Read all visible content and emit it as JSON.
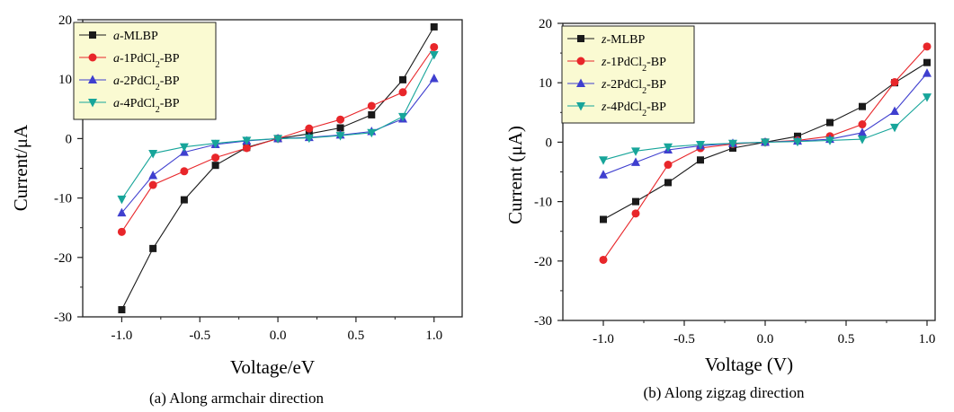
{
  "chart_data": [
    {
      "type": "line",
      "caption": "(a)  Along armchair direction",
      "xlabel": "Voltage/eV",
      "ylabel": "Current/μA",
      "xlim": [
        -1.25,
        1.18
      ],
      "ylim": [
        -30,
        20
      ],
      "xticks": [
        -1.0,
        -0.5,
        0.0,
        0.5,
        1.0
      ],
      "xtick_labels": [
        "-1.0",
        "-0.5",
        "0.0",
        "0.5",
        "1.0"
      ],
      "yticks": [
        -30,
        -20,
        -10,
        0,
        10,
        20
      ],
      "ytick_labels": [
        "-30",
        "-20",
        "-10",
        "0",
        "10",
        "20"
      ],
      "legend_position": "top-left",
      "x": [
        -1.0,
        -0.8,
        -0.6,
        -0.4,
        -0.2,
        0.0,
        0.2,
        0.4,
        0.6,
        0.8,
        1.0
      ],
      "series": [
        {
          "prefix": "a",
          "main": "-MLBP",
          "sub": "",
          "tail": "",
          "color": "#1a1a1a",
          "marker": "square",
          "values": [
            -28.8,
            -18.5,
            -10.3,
            -4.5,
            -1.5,
            0.0,
            0.8,
            1.8,
            4.0,
            9.9,
            18.8
          ]
        },
        {
          "prefix": "a",
          "main": "-1PdCl",
          "sub": "2",
          "tail": "-BP",
          "color": "#e8262a",
          "marker": "circle",
          "values": [
            -15.7,
            -7.8,
            -5.5,
            -3.2,
            -1.6,
            0.0,
            1.7,
            3.2,
            5.5,
            7.8,
            15.4
          ]
        },
        {
          "prefix": "a",
          "main": "-2PdCl",
          "sub": "2",
          "tail": "-BP",
          "color": "#3f3fcf",
          "marker": "triangle-up",
          "values": [
            -12.5,
            -6.2,
            -2.3,
            -1.0,
            -0.4,
            0.0,
            0.2,
            0.6,
            1.2,
            3.3,
            10.1
          ]
        },
        {
          "prefix": "a",
          "main": "-4PdCl",
          "sub": "2",
          "tail": "-BP",
          "color": "#17a59a",
          "marker": "triangle-down",
          "values": [
            -10.2,
            -2.5,
            -1.4,
            -0.8,
            -0.3,
            0.0,
            0.1,
            0.5,
            1.0,
            3.7,
            14.1
          ]
        }
      ]
    },
    {
      "type": "line",
      "caption": "(b)  Along zigzag direction",
      "xlabel": "Voltage (V)",
      "ylabel": "Current (μA)",
      "xlim": [
        -1.25,
        1.05
      ],
      "ylim": [
        -30,
        20
      ],
      "xticks": [
        -1.0,
        -0.5,
        0.0,
        0.5,
        1.0
      ],
      "xtick_labels": [
        "-1.0",
        "-0.5",
        "0.0",
        "0.5",
        "1.0"
      ],
      "yticks": [
        -30,
        -20,
        -10,
        0,
        10,
        20
      ],
      "ytick_labels": [
        "-30",
        "-20",
        "-10",
        "0",
        "10",
        "20"
      ],
      "legend_position": "top-left",
      "x": [
        -1.0,
        -0.8,
        -0.6,
        -0.4,
        -0.2,
        0.0,
        0.2,
        0.4,
        0.6,
        0.8,
        1.0
      ],
      "series": [
        {
          "prefix": "z",
          "main": "-MLBP",
          "sub": "",
          "tail": "",
          "color": "#1a1a1a",
          "marker": "square",
          "values": [
            -13.0,
            -10.0,
            -6.8,
            -3.0,
            -1.0,
            0.0,
            1.0,
            3.3,
            6.0,
            10.0,
            13.4
          ]
        },
        {
          "prefix": "z",
          "main": "-1PdCl",
          "sub": "2",
          "tail": "-BP",
          "color": "#e8262a",
          "marker": "circle",
          "values": [
            -19.8,
            -12.0,
            -3.8,
            -1.0,
            -0.3,
            0.0,
            0.3,
            1.0,
            3.0,
            10.1,
            16.1
          ]
        },
        {
          "prefix": "z",
          "main": "-2PdCl",
          "sub": "2",
          "tail": "-BP",
          "color": "#3f3fcf",
          "marker": "triangle-up",
          "values": [
            -5.5,
            -3.4,
            -1.3,
            -0.6,
            -0.2,
            0.0,
            0.2,
            0.5,
            1.6,
            5.2,
            11.6
          ]
        },
        {
          "prefix": "z",
          "main": "-4PdCl",
          "sub": "2",
          "tail": "-BP",
          "color": "#17a59a",
          "marker": "triangle-down",
          "values": [
            -3.0,
            -1.5,
            -0.8,
            -0.4,
            -0.2,
            0.0,
            0.1,
            0.3,
            0.5,
            2.5,
            7.6
          ]
        }
      ]
    }
  ]
}
